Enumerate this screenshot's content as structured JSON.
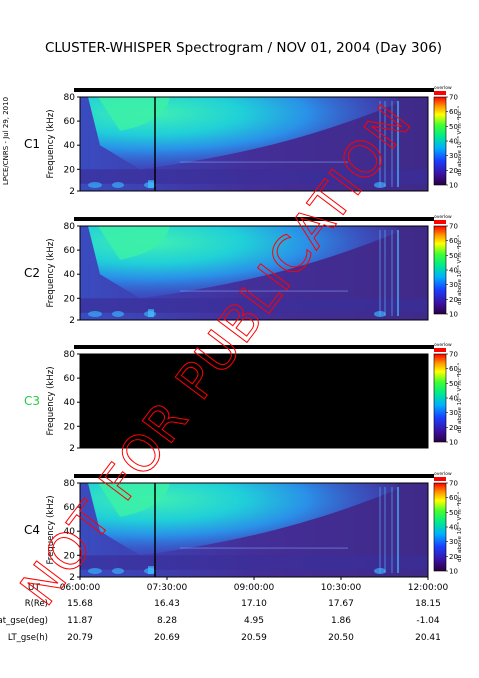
{
  "title": "CLUSTER-WHISPER Spectrogram / NOV 01, 2004 (Day 306)",
  "credit": "LPCE/CNRS - Jul 29, 2010",
  "watermark": "NOT FOR PUBLICATION",
  "colors": {
    "bar": "#000000",
    "watermark": "#ff0000",
    "c3_label": "#22cc44",
    "panel_bg": "#4a2a80",
    "dead_panel": "#000000"
  },
  "chart_data": {
    "type": "heatmap",
    "title": "CLUSTER-WHISPER Spectrogram / NOV 01, 2004 (Day 306)",
    "xlabel": "UT",
    "ylabel": "Frequency (kHz)",
    "y_ticks": [
      "80",
      "60",
      "40",
      "20",
      "2"
    ],
    "ylim": [
      2,
      80
    ],
    "x_ticks": [
      "06:00:00",
      "07:30:00",
      "09:00:00",
      "10:30:00",
      "12:00:00"
    ],
    "colorbar": {
      "label": "dB above 10⁻⁸ V²m⁻²Hz⁻¹",
      "top_label": "overlow",
      "ticks": [
        "70",
        "60",
        "50",
        "40",
        "30",
        "20",
        "10"
      ],
      "range": [
        10,
        70
      ]
    },
    "panels": [
      {
        "name": "C1",
        "has_data": true
      },
      {
        "name": "C2",
        "has_data": true
      },
      {
        "name": "C3",
        "has_data": false
      },
      {
        "name": "C4",
        "has_data": true
      }
    ],
    "ephemeris": [
      {
        "label": "R(Re)",
        "values": [
          "15.68",
          "16.43",
          "17.10",
          "17.67",
          "18.15"
        ]
      },
      {
        "label": "Lat_gse(deg)",
        "values": [
          "11.87",
          "8.28",
          "4.95",
          "1.86",
          "-1.04"
        ]
      },
      {
        "label": "LT_gse(h)",
        "values": [
          "20.79",
          "20.69",
          "20.59",
          "20.50",
          "20.41"
        ]
      }
    ]
  }
}
